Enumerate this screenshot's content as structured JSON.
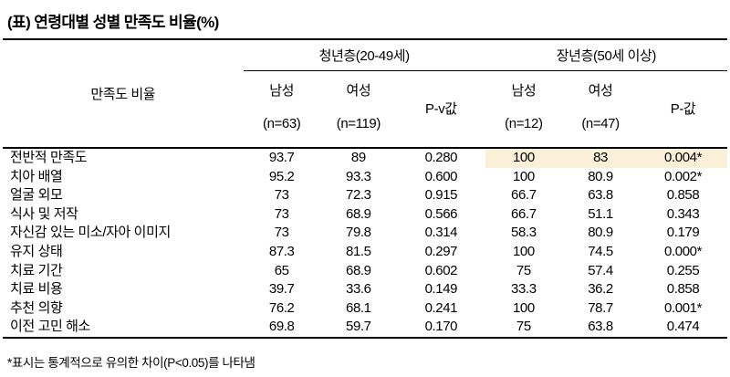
{
  "title": "(표) 연령대별 성별 만족도 비율(%)",
  "footnote": "*표시는 통계적으로 유의한 차이(P<0.05)를 나타냄",
  "table": {
    "stub_header": "만족도 비율",
    "highlight_color": "#faf0d7",
    "groups": [
      {
        "label": "청년층(20-49세)"
      },
      {
        "label": "장년층(50세 이상)"
      }
    ],
    "columns": [
      {
        "label": "남성",
        "count": "(n=63)"
      },
      {
        "label": "여성",
        "count": "(n=119)"
      },
      {
        "label": "P-v값",
        "count": ""
      },
      {
        "label": "남성",
        "count": "(n=12)"
      },
      {
        "label": "여성",
        "count": "(n=47)"
      },
      {
        "label": "P-값",
        "count": ""
      }
    ],
    "rows": [
      {
        "label": "전반적 만족도",
        "values": [
          "93.7",
          "89",
          "0.280",
          "100",
          "83",
          "0.004*"
        ],
        "highlight_cols": [
          3,
          4,
          5
        ]
      },
      {
        "label": "치아 배열",
        "values": [
          "95.2",
          "93.3",
          "0.600",
          "100",
          "80.9",
          "0.002*"
        ],
        "highlight_cols": []
      },
      {
        "label": "얼굴 외모",
        "values": [
          "73",
          "72.3",
          "0.915",
          "66.7",
          "63.8",
          "0.858"
        ],
        "highlight_cols": []
      },
      {
        "label": "식사 및 저작",
        "values": [
          "73",
          "68.9",
          "0.566",
          "66.7",
          "51.1",
          "0.343"
        ],
        "highlight_cols": []
      },
      {
        "label": "자신감 있는 미소/자아 이미지",
        "values": [
          "73",
          "79.8",
          "0.314",
          "58.3",
          "80.9",
          "0.179"
        ],
        "highlight_cols": []
      },
      {
        "label": "유지 상태",
        "values": [
          "87.3",
          "81.5",
          "0.297",
          "100",
          "74.5",
          "0.000*"
        ],
        "highlight_cols": []
      },
      {
        "label": "치료 기간",
        "values": [
          "65",
          "68.9",
          "0.602",
          "75",
          "57.4",
          "0.255"
        ],
        "highlight_cols": []
      },
      {
        "label": "치료 비용",
        "values": [
          "39.7",
          "33.6",
          "0.149",
          "33.3",
          "36.2",
          "0.858"
        ],
        "highlight_cols": []
      },
      {
        "label": "추천 의향",
        "values": [
          "76.2",
          "68.1",
          "0.241",
          "100",
          "78.7",
          "0.001*"
        ],
        "highlight_cols": []
      },
      {
        "label": "이전 고민 해소",
        "values": [
          "69.8",
          "59.7",
          "0.170",
          "75",
          "63.8",
          "0.474"
        ],
        "highlight_cols": []
      }
    ]
  }
}
